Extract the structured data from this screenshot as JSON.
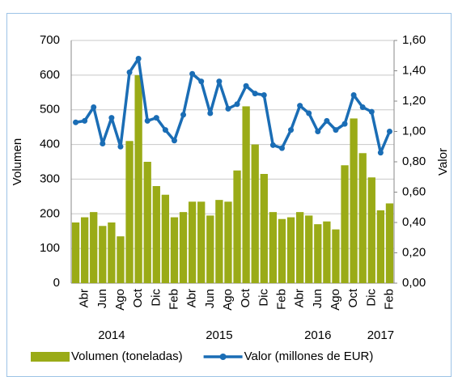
{
  "chart_data": {
    "type": "bar",
    "categories": [
      null,
      "Abr",
      null,
      "Jun",
      null,
      "Ago",
      null,
      "Oct",
      null,
      "Dic",
      null,
      "Feb",
      null,
      "Abr",
      null,
      "Jun",
      null,
      "Ago",
      null,
      "Oct",
      null,
      "Dic",
      null,
      "Feb",
      null,
      "Abr",
      null,
      "Jun",
      null,
      "Ago",
      null,
      "Oct",
      null,
      "Dic",
      null,
      "Feb"
    ],
    "year_labels": [
      null,
      null,
      null,
      null,
      "2014",
      null,
      null,
      null,
      null,
      null,
      null,
      null,
      null,
      null,
      null,
      null,
      "2015",
      null,
      null,
      null,
      null,
      null,
      null,
      null,
      null,
      null,
      null,
      "2016",
      null,
      null,
      null,
      null,
      null,
      null,
      "2017",
      null
    ],
    "ylabel": "Volumen",
    "y2label": "Valor",
    "ylim": [
      0,
      700
    ],
    "yticks": [
      0,
      100,
      200,
      300,
      400,
      500,
      600,
      700
    ],
    "y2lim": [
      0,
      1.6
    ],
    "y2ticks": [
      {
        "value": 0,
        "label": "0,00"
      },
      {
        "value": 0.2,
        "label": "0,20"
      },
      {
        "value": 0.4,
        "label": "0,40"
      },
      {
        "value": 0.6,
        "label": "0,60"
      },
      {
        "value": 0.8,
        "label": "0,80"
      },
      {
        "value": 1.0,
        "label": "1,00"
      },
      {
        "value": 1.2,
        "label": "1,20"
      },
      {
        "value": 1.4,
        "label": "1,40"
      },
      {
        "value": 1.6,
        "label": "1,60"
      }
    ],
    "grid": true,
    "legend": "bottom",
    "series": [
      {
        "name": "Volumen (toneladas)",
        "type": "bar",
        "color": "#9aab17",
        "values": [
          175,
          190,
          205,
          165,
          175,
          135,
          410,
          600,
          350,
          280,
          255,
          190,
          205,
          235,
          235,
          195,
          240,
          235,
          325,
          510,
          400,
          315,
          205,
          185,
          190,
          205,
          195,
          170,
          178,
          155,
          340,
          475,
          375,
          305,
          210,
          230
        ]
      },
      {
        "name": "Valor (millones de EUR)",
        "type": "line",
        "axis": "y2",
        "color": "#1a6db5",
        "values": [
          1.06,
          1.07,
          1.16,
          0.92,
          1.09,
          0.9,
          1.39,
          1.48,
          1.07,
          1.09,
          1.01,
          0.94,
          1.11,
          1.38,
          1.33,
          1.12,
          1.33,
          1.15,
          1.18,
          1.3,
          1.25,
          1.24,
          0.91,
          0.89,
          1.01,
          1.17,
          1.12,
          1.0,
          1.07,
          1.01,
          1.05,
          1.24,
          1.16,
          1.13,
          0.86,
          1.0
        ]
      }
    ]
  }
}
